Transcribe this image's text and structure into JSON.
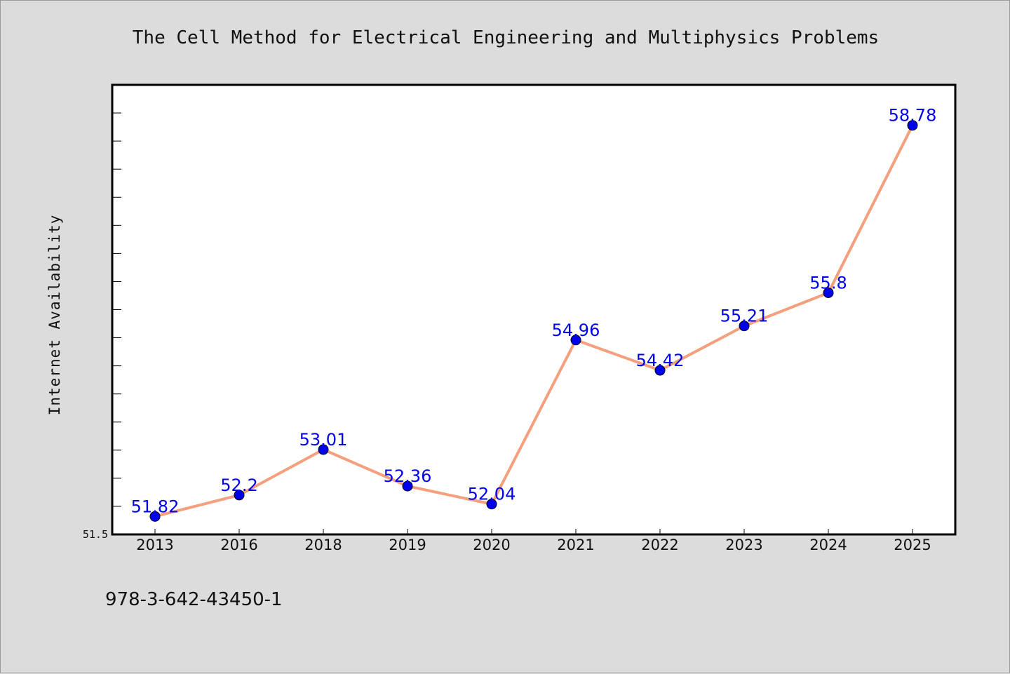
{
  "chart_data": {
    "type": "line",
    "title": "The Cell Method for Electrical Engineering and Multiphysics Problems",
    "ylabel": "Internet Availability",
    "xlabel": "",
    "categories": [
      "2013",
      "2016",
      "2018",
      "2019",
      "2020",
      "2021",
      "2022",
      "2023",
      "2024",
      "2025"
    ],
    "series": [
      {
        "values": [
          51.82,
          52.2,
          53.01,
          52.36,
          52.04,
          54.96,
          54.42,
          55.21,
          55.8,
          58.78
        ]
      }
    ],
    "data_labels": [
      "51.82",
      "52.2",
      "53.01",
      "52.36",
      "52.04",
      "54.96",
      "54.42",
      "55.21",
      "55.8",
      "58.78"
    ],
    "ylim": [
      51.5,
      59.5
    ],
    "y_tick_labels": [
      "51.5"
    ],
    "grid": false,
    "line_color": "#f4a07e",
    "marker_color": "#0000ee",
    "label_color": "#0000ee"
  },
  "footer_text": "978-3-642-43450-1"
}
